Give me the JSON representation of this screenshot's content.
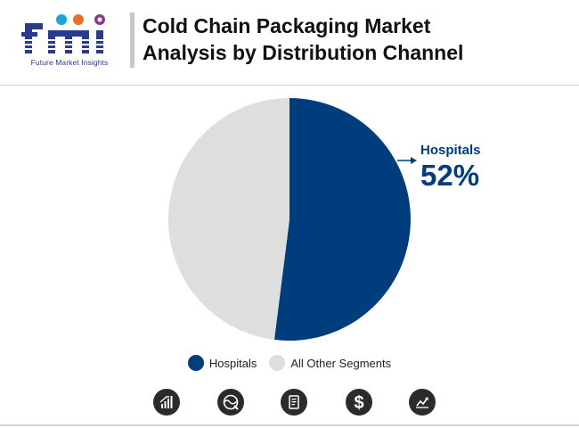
{
  "logo": {
    "tagline": "Future Market Insights"
  },
  "title": {
    "line1": "Cold Chain Packaging Market",
    "line2": "Analysis by Distribution Channel"
  },
  "chart_data": {
    "type": "pie",
    "categories": [
      "Hospitals",
      "All Other Segments"
    ],
    "values": [
      52,
      48
    ],
    "colors": [
      "#003d7c",
      "#dedede"
    ],
    "annotation": {
      "label": "Hospitals",
      "value": "52%"
    },
    "legend": [
      "Hospitals",
      "All Other Segments"
    ],
    "legend_placement": "bottom-center"
  },
  "footer_icons": [
    "bar-chart-icon",
    "globe-icon",
    "report-icon",
    "dollar-icon",
    "line-chart-icon"
  ]
}
